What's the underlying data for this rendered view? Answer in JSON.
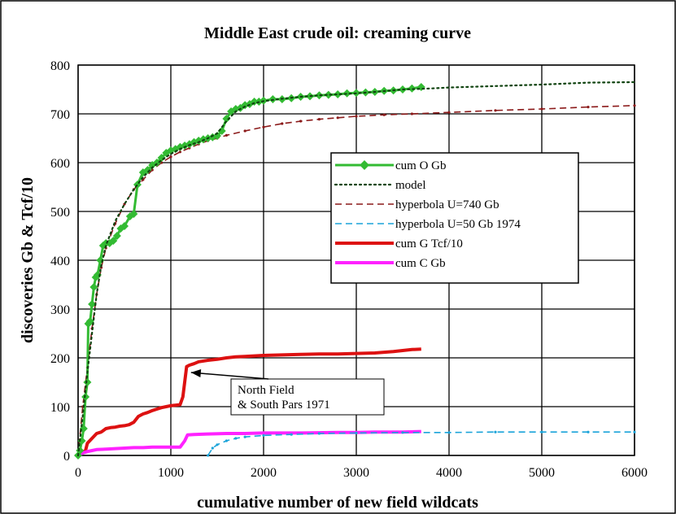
{
  "chart_data": {
    "type": "line",
    "title": "Middle East crude oil: creaming curve",
    "xlabel": "cumulative number of new field wildcats",
    "ylabel": "discoveries Gb & Tcf/10",
    "xlim": [
      0,
      6000
    ],
    "ylim": [
      0,
      800
    ],
    "xticks": [
      0,
      1000,
      2000,
      3000,
      4000,
      5000,
      6000
    ],
    "yticks": [
      0,
      100,
      200,
      300,
      400,
      500,
      600,
      700,
      800
    ],
    "grid": true,
    "legend_position": "right",
    "annotation": {
      "lines": [
        "North Field",
        "& South Pars 1971"
      ],
      "points_to": [
        1200,
        180
      ]
    },
    "series": [
      {
        "name": "cum O Gb",
        "color": "#33bb33",
        "style": "solid-diamond",
        "points": [
          [
            0,
            0
          ],
          [
            20,
            10
          ],
          [
            40,
            30
          ],
          [
            60,
            55
          ],
          [
            80,
            120
          ],
          [
            100,
            150
          ],
          [
            110,
            270
          ],
          [
            130,
            275
          ],
          [
            150,
            310
          ],
          [
            170,
            345
          ],
          [
            190,
            365
          ],
          [
            210,
            370
          ],
          [
            240,
            400
          ],
          [
            270,
            430
          ],
          [
            300,
            435
          ],
          [
            340,
            435
          ],
          [
            380,
            440
          ],
          [
            420,
            450
          ],
          [
            460,
            465
          ],
          [
            500,
            470
          ],
          [
            560,
            490
          ],
          [
            600,
            495
          ],
          [
            640,
            555
          ],
          [
            700,
            580
          ],
          [
            750,
            585
          ],
          [
            800,
            595
          ],
          [
            850,
            600
          ],
          [
            900,
            610
          ],
          [
            950,
            620
          ],
          [
            1000,
            625
          ],
          [
            1050,
            628
          ],
          [
            1100,
            632
          ],
          [
            1150,
            635
          ],
          [
            1200,
            638
          ],
          [
            1250,
            642
          ],
          [
            1300,
            645
          ],
          [
            1350,
            648
          ],
          [
            1400,
            650
          ],
          [
            1450,
            652
          ],
          [
            1500,
            655
          ],
          [
            1550,
            665
          ],
          [
            1600,
            690
          ],
          [
            1650,
            705
          ],
          [
            1700,
            710
          ],
          [
            1750,
            712
          ],
          [
            1800,
            718
          ],
          [
            1850,
            720
          ],
          [
            1900,
            725
          ],
          [
            1950,
            725
          ],
          [
            2000,
            727
          ],
          [
            2100,
            730
          ],
          [
            2200,
            730
          ],
          [
            2300,
            732
          ],
          [
            2400,
            735
          ],
          [
            2500,
            736
          ],
          [
            2600,
            738
          ],
          [
            2700,
            739
          ],
          [
            2800,
            740
          ],
          [
            2900,
            742
          ],
          [
            3000,
            743
          ],
          [
            3100,
            744
          ],
          [
            3200,
            745
          ],
          [
            3300,
            747
          ],
          [
            3400,
            748
          ],
          [
            3500,
            750
          ],
          [
            3600,
            752
          ],
          [
            3700,
            755
          ]
        ]
      },
      {
        "name": "model",
        "color": "#114411",
        "style": "dotted",
        "points": [
          [
            0,
            0
          ],
          [
            50,
            80
          ],
          [
            100,
            170
          ],
          [
            150,
            250
          ],
          [
            200,
            330
          ],
          [
            250,
            390
          ],
          [
            300,
            430
          ],
          [
            400,
            480
          ],
          [
            500,
            515
          ],
          [
            600,
            545
          ],
          [
            700,
            570
          ],
          [
            800,
            590
          ],
          [
            900,
            605
          ],
          [
            1000,
            618
          ],
          [
            1100,
            628
          ],
          [
            1200,
            636
          ],
          [
            1300,
            642
          ],
          [
            1400,
            650
          ],
          [
            1500,
            660
          ],
          [
            1600,
            685
          ],
          [
            1700,
            705
          ],
          [
            1800,
            715
          ],
          [
            1900,
            722
          ],
          [
            2000,
            726
          ],
          [
            2200,
            731
          ],
          [
            2400,
            735
          ],
          [
            2600,
            738
          ],
          [
            2800,
            740
          ],
          [
            3000,
            742
          ],
          [
            3200,
            745
          ],
          [
            3500,
            750
          ],
          [
            3800,
            752
          ],
          [
            4000,
            754
          ],
          [
            4500,
            757
          ],
          [
            5000,
            760
          ],
          [
            5500,
            764
          ],
          [
            6000,
            765
          ]
        ]
      },
      {
        "name": "hyperbola U=740 Gb",
        "color": "#8b1a1a",
        "style": "dashed",
        "points": [
          [
            0,
            0
          ],
          [
            50,
            100
          ],
          [
            100,
            180
          ],
          [
            150,
            260
          ],
          [
            200,
            330
          ],
          [
            250,
            385
          ],
          [
            300,
            425
          ],
          [
            400,
            475
          ],
          [
            500,
            515
          ],
          [
            600,
            545
          ],
          [
            700,
            565
          ],
          [
            800,
            585
          ],
          [
            900,
            600
          ],
          [
            1000,
            612
          ],
          [
            1100,
            622
          ],
          [
            1200,
            630
          ],
          [
            1300,
            638
          ],
          [
            1400,
            645
          ],
          [
            1500,
            650
          ],
          [
            1600,
            656
          ],
          [
            1800,
            665
          ],
          [
            2000,
            673
          ],
          [
            2200,
            680
          ],
          [
            2400,
            685
          ],
          [
            2600,
            689
          ],
          [
            2800,
            692
          ],
          [
            3000,
            695
          ],
          [
            3300,
            698
          ],
          [
            3600,
            700
          ],
          [
            4000,
            703
          ],
          [
            4500,
            707
          ],
          [
            5000,
            710
          ],
          [
            5500,
            714
          ],
          [
            6000,
            717
          ]
        ]
      },
      {
        "name": "hyperbola U=50 Gb 1974",
        "color": "#1aa3d9",
        "style": "dashed",
        "points": [
          [
            1400,
            0
          ],
          [
            1450,
            15
          ],
          [
            1500,
            22
          ],
          [
            1600,
            30
          ],
          [
            1700,
            35
          ],
          [
            1800,
            38
          ],
          [
            2000,
            41
          ],
          [
            2300,
            43
          ],
          [
            2600,
            45
          ],
          [
            3000,
            46
          ],
          [
            3500,
            47
          ],
          [
            4000,
            47
          ],
          [
            4500,
            48
          ],
          [
            5000,
            48
          ],
          [
            5500,
            48
          ],
          [
            6000,
            48
          ]
        ]
      },
      {
        "name": "cum G Tcf/10",
        "color": "#dd1111",
        "style": "solid-thick",
        "points": [
          [
            0,
            0
          ],
          [
            80,
            10
          ],
          [
            100,
            25
          ],
          [
            150,
            35
          ],
          [
            200,
            45
          ],
          [
            250,
            48
          ],
          [
            300,
            55
          ],
          [
            350,
            57
          ],
          [
            400,
            58
          ],
          [
            450,
            60
          ],
          [
            500,
            61
          ],
          [
            550,
            63
          ],
          [
            600,
            68
          ],
          [
            650,
            80
          ],
          [
            700,
            85
          ],
          [
            750,
            88
          ],
          [
            800,
            92
          ],
          [
            850,
            95
          ],
          [
            900,
            98
          ],
          [
            950,
            100
          ],
          [
            1000,
            102
          ],
          [
            1050,
            103
          ],
          [
            1100,
            104
          ],
          [
            1130,
            120
          ],
          [
            1170,
            182
          ],
          [
            1200,
            185
          ],
          [
            1250,
            188
          ],
          [
            1300,
            192
          ],
          [
            1400,
            195
          ],
          [
            1500,
            197
          ],
          [
            1600,
            200
          ],
          [
            1700,
            202
          ],
          [
            1800,
            203
          ],
          [
            1900,
            204
          ],
          [
            2000,
            205
          ],
          [
            2200,
            206
          ],
          [
            2400,
            207
          ],
          [
            2600,
            208
          ],
          [
            2800,
            208
          ],
          [
            3000,
            209
          ],
          [
            3200,
            210
          ],
          [
            3400,
            213
          ],
          [
            3500,
            215
          ],
          [
            3600,
            217
          ],
          [
            3700,
            218
          ]
        ]
      },
      {
        "name": "cum C Gb",
        "color": "#ff22ff",
        "style": "solid-thick",
        "points": [
          [
            0,
            0
          ],
          [
            50,
            5
          ],
          [
            100,
            8
          ],
          [
            150,
            10
          ],
          [
            200,
            12
          ],
          [
            300,
            13
          ],
          [
            400,
            14
          ],
          [
            500,
            15
          ],
          [
            600,
            16
          ],
          [
            700,
            16
          ],
          [
            800,
            17
          ],
          [
            900,
            17
          ],
          [
            1000,
            17
          ],
          [
            1100,
            17
          ],
          [
            1150,
            30
          ],
          [
            1180,
            42
          ],
          [
            1250,
            43
          ],
          [
            1400,
            44
          ],
          [
            1600,
            45
          ],
          [
            1800,
            45
          ],
          [
            2000,
            46
          ],
          [
            2400,
            46
          ],
          [
            2800,
            47
          ],
          [
            3000,
            47
          ],
          [
            3200,
            48
          ],
          [
            3500,
            48
          ],
          [
            3700,
            49
          ]
        ]
      }
    ]
  }
}
